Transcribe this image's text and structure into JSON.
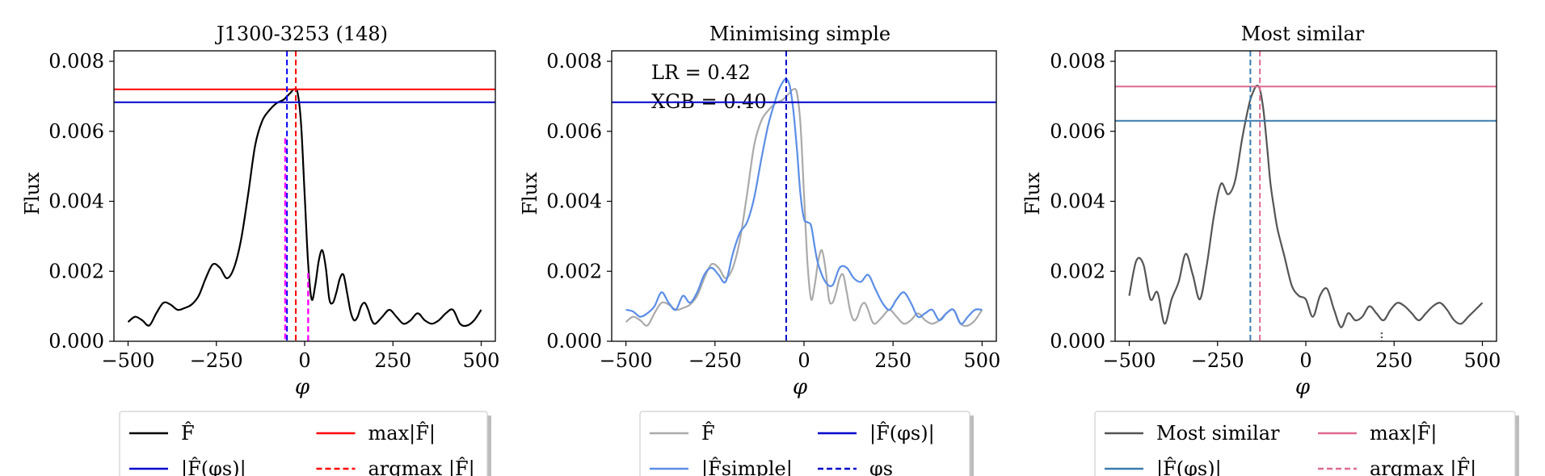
{
  "chart_data": [
    {
      "type": "line",
      "title": "J1300-3253 (148)",
      "xlabel": "φ",
      "ylabel": "Flux",
      "xlim": [
        -540,
        540
      ],
      "ylim": [
        0,
        0.0083
      ],
      "xticks": [
        -500,
        -250,
        0,
        250,
        500
      ],
      "xtick_labels": [
        "−500",
        "−250",
        "0",
        "250",
        "500"
      ],
      "yticks": [
        0,
        0.002,
        0.004,
        0.006,
        0.008
      ],
      "ytick_labels": [
        "0.000",
        "0.002",
        "0.004",
        "0.006",
        "0.008"
      ],
      "series": [
        {
          "name": "F̂",
          "color": "#000000",
          "style": "solid",
          "x": [
            -500,
            -480,
            -460,
            -440,
            -420,
            -400,
            -380,
            -360,
            -340,
            -320,
            -300,
            -280,
            -260,
            -240,
            -220,
            -200,
            -180,
            -160,
            -140,
            -120,
            -100,
            -80,
            -60,
            -50,
            -40,
            -30,
            -20,
            -10,
            0,
            10,
            20,
            30,
            40,
            50,
            60,
            70,
            80,
            90,
            100,
            110,
            120,
            130,
            140,
            150,
            160,
            170,
            180,
            190,
            200,
            220,
            240,
            260,
            280,
            300,
            320,
            340,
            360,
            380,
            400,
            420,
            440,
            460,
            480,
            500
          ],
          "y": [
            0.00055,
            0.0007,
            0.0006,
            0.00045,
            0.0008,
            0.0011,
            0.00105,
            0.0009,
            0.00095,
            0.00105,
            0.0013,
            0.0018,
            0.0022,
            0.0021,
            0.0018,
            0.0021,
            0.0029,
            0.0042,
            0.0056,
            0.0063,
            0.0066,
            0.0068,
            0.0069,
            0.007,
            0.0071,
            0.0072,
            0.0071,
            0.0062,
            0.0042,
            0.0022,
            0.0012,
            0.0016,
            0.0023,
            0.0026,
            0.0021,
            0.0012,
            0.0011,
            0.0014,
            0.0018,
            0.0019,
            0.0014,
            0.00085,
            0.0006,
            0.0007,
            0.001,
            0.0011,
            0.0009,
            0.0006,
            0.0005,
            0.0007,
            0.0009,
            0.0007,
            0.0005,
            0.0006,
            0.0008,
            0.0006,
            0.0005,
            0.0006,
            0.0008,
            0.0009,
            0.0005,
            0.00045,
            0.0006,
            0.0009
          ]
        },
        {
          "name": "|F̂(φs)|",
          "color": "#0000cc",
          "style": "solid",
          "hline": 0.00683
        },
        {
          "name": "max|F̂|",
          "color": "#ff0000",
          "style": "solid",
          "hline": 0.0072
        },
        {
          "name": "argmax |F̂|",
          "color": "#ff0000",
          "style": "dashed",
          "vline": -25
        },
        {
          "name": "φs",
          "color": "#0000ff",
          "style": "dashed",
          "vline": -50
        },
        {
          "name": "",
          "color": "#ff00ff",
          "style": "dashed",
          "segments": [
            [
              -55,
              0.0058
            ],
            [
              10,
              0.00195
            ]
          ]
        }
      ],
      "legend": {
        "placement": "below",
        "entries": [
          {
            "label": "F̂",
            "color": "#000000",
            "style": "solid"
          },
          {
            "label": "max|F̂|",
            "color": "#ff0000",
            "style": "solid"
          },
          {
            "label": "|F̂(φs)|",
            "color": "#0000cc",
            "style": "solid"
          },
          {
            "label": "argmax |F̂|",
            "color": "#ff0000",
            "style": "dashed"
          }
        ]
      }
    },
    {
      "type": "line",
      "title": "Minimising simple",
      "xlabel": "φ",
      "ylabel": "Flux",
      "xlim": [
        -540,
        540
      ],
      "ylim": [
        0,
        0.0083
      ],
      "xticks": [
        -500,
        -250,
        0,
        250,
        500
      ],
      "xtick_labels": [
        "−500",
        "−250",
        "0",
        "250",
        "500"
      ],
      "yticks": [
        0,
        0.002,
        0.004,
        0.006,
        0.008
      ],
      "ytick_labels": [
        "0.000",
        "0.002",
        "0.004",
        "0.006",
        "0.008"
      ],
      "annotations": [
        "LR = 0.42",
        "XGB = 0.40"
      ],
      "series": [
        {
          "name": "F̂",
          "color": "#aaaaaa",
          "style": "solid",
          "x": [
            -500,
            -480,
            -460,
            -440,
            -420,
            -400,
            -380,
            -360,
            -340,
            -320,
            -300,
            -280,
            -260,
            -240,
            -220,
            -200,
            -180,
            -160,
            -140,
            -120,
            -100,
            -80,
            -60,
            -50,
            -40,
            -30,
            -20,
            -10,
            0,
            10,
            20,
            30,
            40,
            50,
            60,
            70,
            80,
            90,
            100,
            110,
            120,
            130,
            140,
            150,
            160,
            170,
            180,
            190,
            200,
            220,
            240,
            260,
            280,
            300,
            320,
            340,
            360,
            380,
            400,
            420,
            440,
            460,
            480,
            500
          ],
          "y": [
            0.00055,
            0.0007,
            0.0006,
            0.00045,
            0.0008,
            0.0011,
            0.00105,
            0.0009,
            0.00095,
            0.00105,
            0.0013,
            0.0018,
            0.0022,
            0.0021,
            0.0018,
            0.0021,
            0.0029,
            0.0042,
            0.0056,
            0.0063,
            0.0066,
            0.0068,
            0.0069,
            0.007,
            0.0071,
            0.0072,
            0.0071,
            0.0062,
            0.0042,
            0.0022,
            0.0012,
            0.0016,
            0.0023,
            0.0026,
            0.0021,
            0.0012,
            0.0011,
            0.0014,
            0.0018,
            0.0019,
            0.0014,
            0.00085,
            0.0006,
            0.0007,
            0.001,
            0.0011,
            0.0009,
            0.0006,
            0.0005,
            0.0007,
            0.0009,
            0.0007,
            0.0005,
            0.0006,
            0.0008,
            0.0006,
            0.0005,
            0.0006,
            0.0008,
            0.0009,
            0.0005,
            0.00045,
            0.0006,
            0.0009
          ]
        },
        {
          "name": "|F̂simple|",
          "color": "#5b8ee6",
          "style": "solid",
          "x": [
            -500,
            -480,
            -460,
            -440,
            -420,
            -400,
            -380,
            -360,
            -340,
            -320,
            -300,
            -280,
            -260,
            -240,
            -220,
            -200,
            -180,
            -160,
            -140,
            -120,
            -100,
            -80,
            -70,
            -60,
            -50,
            -40,
            -30,
            -20,
            -10,
            0,
            10,
            20,
            30,
            40,
            60,
            80,
            100,
            120,
            140,
            160,
            180,
            200,
            220,
            240,
            260,
            280,
            300,
            320,
            340,
            360,
            380,
            400,
            420,
            440,
            460,
            480,
            500
          ],
          "y": [
            0.0009,
            0.00085,
            0.0007,
            0.0008,
            0.001,
            0.0014,
            0.0011,
            0.0009,
            0.0013,
            0.0011,
            0.0014,
            0.0019,
            0.0021,
            0.0019,
            0.0017,
            0.0025,
            0.0031,
            0.0034,
            0.0041,
            0.0052,
            0.0062,
            0.0069,
            0.0072,
            0.0074,
            0.0075,
            0.0073,
            0.0066,
            0.0055,
            0.0042,
            0.0035,
            0.0034,
            0.0033,
            0.0027,
            0.0022,
            0.0017,
            0.0016,
            0.0021,
            0.0021,
            0.0018,
            0.0017,
            0.0019,
            0.0015,
            0.0011,
            0.0009,
            0.0012,
            0.0014,
            0.0011,
            0.0007,
            0.0008,
            0.0009,
            0.0006,
            0.0008,
            0.0009,
            0.0005,
            0.0007,
            0.0009,
            0.0009
          ]
        },
        {
          "name": "|F̂(φs)|",
          "color": "#0000cc",
          "style": "solid",
          "hline": 0.00683
        },
        {
          "name": "φs",
          "color": "#0000cc",
          "style": "dashed",
          "vline": -50
        }
      ],
      "legend": {
        "placement": "below",
        "entries": [
          {
            "label": "F̂",
            "color": "#aaaaaa",
            "style": "solid"
          },
          {
            "label": "|F̂(φs)|",
            "color": "#0000cc",
            "style": "solid"
          },
          {
            "label": "|F̂simple|",
            "color": "#5b8ee6",
            "style": "solid"
          },
          {
            "label": "φs",
            "color": "#0000cc",
            "style": "dashed"
          }
        ]
      }
    },
    {
      "type": "line",
      "title": "Most similar",
      "xlabel": "φ",
      "ylabel": "Flux",
      "xlim": [
        -540,
        540
      ],
      "ylim": [
        0,
        0.0083
      ],
      "xticks": [
        -500,
        -250,
        0,
        250,
        500
      ],
      "xtick_labels": [
        "−500",
        "−250",
        "0",
        "250",
        "500"
      ],
      "yticks": [
        0,
        0.002,
        0.004,
        0.006,
        0.008
      ],
      "ytick_labels": [
        "0.000",
        "0.002",
        "0.004",
        "0.006",
        "0.008"
      ],
      "series": [
        {
          "name": "Most similar",
          "color": "#555555",
          "style": "solid",
          "x": [
            -500,
            -480,
            -460,
            -440,
            -420,
            -400,
            -380,
            -360,
            -340,
            -320,
            -300,
            -280,
            -260,
            -240,
            -220,
            -200,
            -180,
            -160,
            -150,
            -140,
            -130,
            -120,
            -110,
            -100,
            -90,
            -80,
            -60,
            -40,
            -20,
            0,
            20,
            40,
            60,
            80,
            100,
            120,
            140,
            160,
            180,
            200,
            220,
            240,
            260,
            280,
            300,
            320,
            340,
            360,
            380,
            400,
            420,
            440,
            460,
            480,
            500
          ],
          "y": [
            0.0013,
            0.0023,
            0.0022,
            0.0012,
            0.0014,
            0.0005,
            0.0012,
            0.0017,
            0.0025,
            0.0019,
            0.0012,
            0.0022,
            0.0036,
            0.0045,
            0.0042,
            0.0046,
            0.0058,
            0.0068,
            0.0071,
            0.0073,
            0.0072,
            0.0066,
            0.0056,
            0.0045,
            0.0038,
            0.0032,
            0.0024,
            0.0016,
            0.0013,
            0.0012,
            0.0007,
            0.0013,
            0.0015,
            0.0009,
            0.0004,
            0.0008,
            0.0006,
            0.0007,
            0.001,
            0.0008,
            0.0006,
            0.0009,
            0.0011,
            0.001,
            0.0008,
            0.0006,
            0.0008,
            0.001,
            0.0011,
            0.0009,
            0.0006,
            0.0005,
            0.0007,
            0.0009,
            0.0011
          ]
        },
        {
          "name": "max|F̂|",
          "color": "#de6a8f",
          "style": "solid",
          "hline": 0.00728
        },
        {
          "name": "|F̂(φs)|",
          "color": "#3a7aad",
          "style": "solid",
          "hline": 0.0063
        },
        {
          "name": "argmax |F̂|",
          "color": "#de6a8f",
          "style": "dashed",
          "vline": -130
        },
        {
          "name": "",
          "color": "#3a7aad",
          "style": "dashed",
          "vline": -157
        },
        {
          "name": "",
          "color": "#555555",
          "style": "dotted",
          "segments": [
            [
              215,
              0.00025
            ]
          ]
        }
      ],
      "legend": {
        "placement": "below",
        "entries": [
          {
            "label": "Most similar",
            "color": "#555555",
            "style": "solid"
          },
          {
            "label": "max|F̂|",
            "color": "#de6a8f",
            "style": "solid"
          },
          {
            "label": "|F̂(φs)|",
            "color": "#3a7aad",
            "style": "solid"
          },
          {
            "label": "argmax |F̂|",
            "color": "#de6a8f",
            "style": "dashed"
          }
        ]
      }
    }
  ]
}
